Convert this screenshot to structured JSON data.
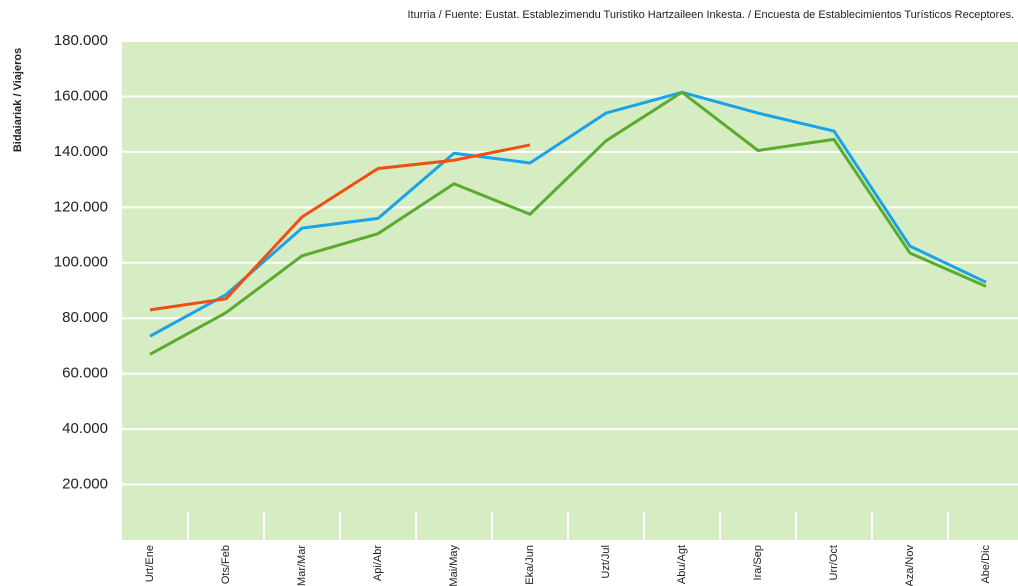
{
  "chart_data": {
    "type": "line",
    "source": "Iturria / Fuente: Eustat. Establezimendu Turistiko Hartzaileen Inkesta. / Encuesta de Establecimientos Turísticos Receptores.",
    "y_label": "Bidaiariak / Viajeros",
    "categories": [
      "Urt/Ene",
      "Ots/Feb",
      "Mar/Mar",
      "Api/Abr",
      "Mai/May",
      "Eka/Jun",
      "Uzt/Jul",
      "Abu/Agt",
      "Ira/Sep",
      "Urr/Oct",
      "Aza/Nov",
      "Abe/Dic"
    ],
    "series": [
      {
        "color": "#1aa3e8",
        "values": [
          73500,
          88500,
          112500,
          116000,
          139500,
          136000,
          154000,
          161500,
          154000,
          147500,
          106000,
          93000
        ]
      },
      {
        "color": "#5aab2e",
        "values": [
          67000,
          82000,
          102500,
          110500,
          128500,
          117500,
          144000,
          161500,
          140500,
          144500,
          103500,
          91500
        ]
      },
      {
        "color": "#ee5011",
        "values": [
          83000,
          87000,
          116500,
          134000,
          137000,
          142500,
          null,
          null,
          null,
          null,
          null,
          null
        ]
      }
    ],
    "ylim": [
      0,
      180000
    ],
    "yticks": [
      {
        "value": 20000,
        "label": "20.000"
      },
      {
        "value": 40000,
        "label": "40.000"
      },
      {
        "value": 60000,
        "label": "60.000"
      },
      {
        "value": 80000,
        "label": "80.000"
      },
      {
        "value": 100000,
        "label": "100.000"
      },
      {
        "value": 120000,
        "label": "120.000"
      },
      {
        "value": 140000,
        "label": "140.000"
      },
      {
        "value": 160000,
        "label": "160.000"
      },
      {
        "value": 180000,
        "label": "180.000"
      }
    ],
    "grid": true
  }
}
